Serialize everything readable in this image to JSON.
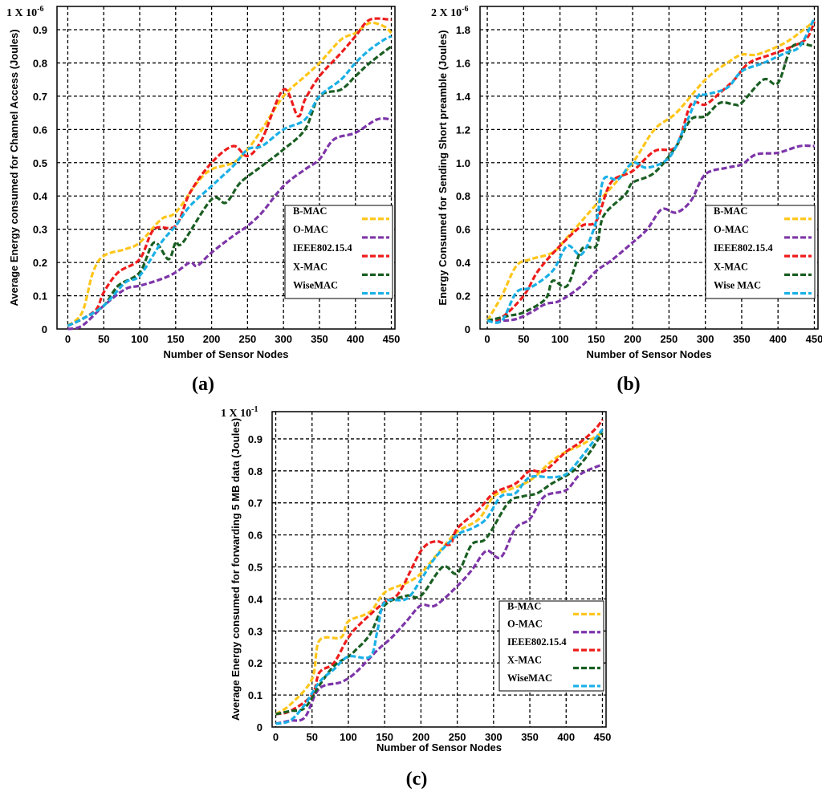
{
  "colors": {
    "B-MAC": "#ffc61a",
    "O-MAC": "#7d35a8",
    "IEEE802.15.4": "#ee1c1c",
    "X-MAC": "#1a5e22",
    "WiseMAC": "#1ab0e6"
  },
  "chart_data": [
    {
      "type": "line",
      "panel_label": "(a)",
      "scale_label": "1 X 10",
      "scale_exponent": "-6",
      "xlabel": "Number of Sensor Nodes",
      "ylabel": "Average Energy consumed for Channel Access (Joules)",
      "xlim": [
        -15,
        455
      ],
      "ylim": [
        0,
        0.97
      ],
      "xticks": [
        0,
        50,
        100,
        150,
        200,
        250,
        300,
        350,
        400,
        450
      ],
      "yticks": [
        0,
        0.1,
        0.2,
        0.3,
        0.4,
        0.5,
        0.6,
        0.7,
        0.8,
        0.9
      ],
      "ytick_labels": [
        "0",
        "0.1",
        "0.2",
        "0.3",
        "0.4",
        "0.5",
        "0.6",
        "0.7",
        "0.8",
        "0.9"
      ],
      "grid": true,
      "legend_position": "bottom-right",
      "series": [
        {
          "name": "B-MAC",
          "color_key": "B-MAC",
          "x": [
            0,
            20,
            35,
            50,
            80,
            100,
            130,
            150,
            180,
            200,
            230,
            250,
            270,
            300,
            330,
            350,
            380,
            400,
            420,
            440,
            450
          ],
          "values": [
            0.01,
            0.05,
            0.17,
            0.22,
            0.24,
            0.26,
            0.33,
            0.35,
            0.44,
            0.48,
            0.5,
            0.54,
            0.6,
            0.7,
            0.76,
            0.8,
            0.87,
            0.89,
            0.92,
            0.91,
            0.89
          ]
        },
        {
          "name": "O-MAC",
          "color_key": "O-MAC",
          "x": [
            0,
            20,
            50,
            80,
            100,
            130,
            150,
            170,
            180,
            200,
            230,
            250,
            270,
            300,
            330,
            350,
            370,
            400,
            430,
            450
          ],
          "values": [
            0,
            0.01,
            0.07,
            0.12,
            0.13,
            0.15,
            0.17,
            0.2,
            0.19,
            0.23,
            0.28,
            0.31,
            0.35,
            0.43,
            0.48,
            0.51,
            0.57,
            0.59,
            0.63,
            0.63
          ]
        },
        {
          "name": "IEEE802.15.4",
          "color_key": "IEEE802.15.4",
          "x": [
            0,
            20,
            40,
            50,
            70,
            100,
            120,
            150,
            170,
            200,
            230,
            250,
            270,
            300,
            320,
            330,
            350,
            380,
            400,
            420,
            450
          ],
          "values": [
            0.01,
            0.03,
            0.06,
            0.11,
            0.17,
            0.21,
            0.3,
            0.31,
            0.41,
            0.5,
            0.55,
            0.52,
            0.57,
            0.72,
            0.64,
            0.69,
            0.76,
            0.83,
            0.88,
            0.93,
            0.93
          ]
        },
        {
          "name": "X-MAC",
          "color_key": "X-MAC",
          "x": [
            0,
            20,
            50,
            70,
            100,
            120,
            140,
            150,
            160,
            200,
            220,
            240,
            270,
            300,
            330,
            350,
            380,
            400,
            420,
            450
          ],
          "values": [
            0.01,
            0.03,
            0.07,
            0.13,
            0.17,
            0.26,
            0.21,
            0.26,
            0.26,
            0.39,
            0.38,
            0.44,
            0.49,
            0.54,
            0.6,
            0.7,
            0.72,
            0.76,
            0.8,
            0.85
          ]
        },
        {
          "name": "WiseMAC",
          "color_key": "WiseMAC",
          "x": [
            0,
            20,
            50,
            80,
            100,
            130,
            150,
            170,
            200,
            230,
            250,
            270,
            300,
            330,
            350,
            380,
            400,
            420,
            440,
            450
          ],
          "values": [
            0.01,
            0.03,
            0.07,
            0.14,
            0.16,
            0.26,
            0.31,
            0.37,
            0.43,
            0.49,
            0.54,
            0.55,
            0.6,
            0.63,
            0.7,
            0.75,
            0.8,
            0.84,
            0.87,
            0.88
          ]
        }
      ]
    },
    {
      "type": "line",
      "panel_label": "(b)",
      "scale_label": "2 X 10",
      "scale_exponent": "-6",
      "xlabel": "Number of Sensor Nodes",
      "ylabel": "Energy Consumed for Sending Short preamble (Joules)",
      "xlim": [
        -10,
        455
      ],
      "ylim": [
        0,
        1.94
      ],
      "xticks": [
        0,
        50,
        100,
        150,
        200,
        250,
        300,
        350,
        400,
        450
      ],
      "yticks": [
        0,
        0.2,
        0.4,
        0.6,
        0.8,
        1.0,
        1.2,
        1.4,
        1.6,
        1.8
      ],
      "ytick_labels": [
        "0",
        "0.2",
        "0.4",
        "0.6",
        "0.8",
        "1.0",
        "1.2",
        "1.4",
        "1.6",
        "1.8"
      ],
      "grid": true,
      "legend_position": "bottom-right",
      "series": [
        {
          "name": "B-MAC",
          "color_key": "B-MAC",
          "x": [
            0,
            20,
            40,
            60,
            90,
            110,
            140,
            160,
            200,
            230,
            260,
            300,
            330,
            350,
            370,
            400,
            420,
            450
          ],
          "values": [
            0.05,
            0.2,
            0.38,
            0.42,
            0.46,
            0.55,
            0.7,
            0.8,
            1.0,
            1.2,
            1.3,
            1.5,
            1.6,
            1.65,
            1.65,
            1.7,
            1.75,
            1.85
          ]
        },
        {
          "name": "O-MAC",
          "color_key": "O-MAC",
          "x": [
            0,
            20,
            40,
            60,
            80,
            100,
            130,
            150,
            170,
            200,
            220,
            240,
            260,
            280,
            300,
            330,
            350,
            370,
            400,
            430,
            450
          ],
          "values": [
            0.05,
            0.05,
            0.06,
            0.1,
            0.15,
            0.17,
            0.26,
            0.35,
            0.41,
            0.52,
            0.6,
            0.72,
            0.7,
            0.77,
            0.93,
            0.97,
            0.99,
            1.05,
            1.06,
            1.1,
            1.1
          ]
        },
        {
          "name": "IEEE802.15.4",
          "color_key": "IEEE802.15.4",
          "x": [
            0,
            20,
            50,
            70,
            100,
            130,
            150,
            170,
            200,
            230,
            260,
            280,
            300,
            320,
            340,
            360,
            390,
            420,
            440,
            450
          ],
          "values": [
            0.05,
            0.07,
            0.2,
            0.35,
            0.5,
            0.62,
            0.65,
            0.88,
            0.95,
            1.07,
            1.1,
            1.35,
            1.35,
            1.42,
            1.5,
            1.6,
            1.65,
            1.7,
            1.75,
            1.85
          ]
        },
        {
          "name": "X-MAC",
          "color_key": "X-MAC",
          "x": [
            0,
            30,
            50,
            80,
            90,
            110,
            130,
            150,
            160,
            190,
            200,
            230,
            260,
            280,
            300,
            320,
            340,
            350,
            380,
            400,
            420,
            450
          ],
          "values": [
            0.05,
            0.08,
            0.1,
            0.18,
            0.29,
            0.26,
            0.48,
            0.5,
            0.68,
            0.81,
            0.88,
            0.94,
            1.1,
            1.26,
            1.28,
            1.36,
            1.35,
            1.36,
            1.5,
            1.48,
            1.7,
            1.7
          ]
        },
        {
          "name": "WiseMAC",
          "color_key": "WiseMAC",
          "x": [
            0,
            20,
            40,
            60,
            90,
            110,
            130,
            150,
            160,
            180,
            200,
            220,
            250,
            270,
            290,
            300,
            330,
            350,
            380,
            410,
            430,
            450
          ],
          "values": [
            0.05,
            0.05,
            0.22,
            0.25,
            0.35,
            0.5,
            0.45,
            0.65,
            0.9,
            0.9,
            1.0,
            0.97,
            1.03,
            1.2,
            1.4,
            1.41,
            1.45,
            1.55,
            1.6,
            1.66,
            1.7,
            1.87
          ]
        }
      ]
    },
    {
      "type": "line",
      "panel_label": "(c)",
      "scale_label": "1 X 10",
      "scale_exponent": "-1",
      "xlabel": "Number of Sensor Nodes",
      "ylabel": "Average Energy consumed for forwarding 5 MB data  (Joules)",
      "xlim": [
        -5,
        455
      ],
      "ylim": [
        0,
        0.985
      ],
      "xticks": [
        0,
        50,
        100,
        150,
        200,
        250,
        300,
        350,
        400,
        450
      ],
      "yticks": [
        0,
        0.1,
        0.2,
        0.3,
        0.4,
        0.5,
        0.6,
        0.7,
        0.8,
        0.9
      ],
      "ytick_labels": [
        "0",
        "0.1",
        "0.2",
        "0.3",
        "0.4",
        "0.5",
        "0.6",
        "0.7",
        "0.8",
        "0.9"
      ],
      "grid": true,
      "legend_position": "bottom-right",
      "series": [
        {
          "name": "B-MAC",
          "color_key": "B-MAC",
          "x": [
            0,
            20,
            50,
            60,
            90,
            100,
            130,
            150,
            180,
            200,
            230,
            250,
            280,
            300,
            320,
            350,
            380,
            400,
            420,
            450
          ],
          "values": [
            0.04,
            0.07,
            0.15,
            0.27,
            0.28,
            0.33,
            0.36,
            0.42,
            0.45,
            0.48,
            0.56,
            0.61,
            0.65,
            0.72,
            0.74,
            0.77,
            0.83,
            0.86,
            0.88,
            0.92
          ]
        },
        {
          "name": "O-MAC",
          "color_key": "O-MAC",
          "x": [
            0,
            20,
            40,
            60,
            90,
            110,
            140,
            160,
            180,
            200,
            220,
            250,
            270,
            290,
            310,
            330,
            350,
            370,
            400,
            420,
            450
          ],
          "values": [
            0.01,
            0.02,
            0.03,
            0.12,
            0.14,
            0.17,
            0.24,
            0.28,
            0.33,
            0.38,
            0.38,
            0.44,
            0.49,
            0.55,
            0.53,
            0.62,
            0.65,
            0.72,
            0.74,
            0.79,
            0.82
          ]
        },
        {
          "name": "IEEE802.15.4",
          "color_key": "IEEE802.15.4",
          "x": [
            0,
            20,
            50,
            60,
            80,
            100,
            120,
            150,
            170,
            200,
            220,
            240,
            250,
            280,
            300,
            330,
            350,
            370,
            400,
            420,
            440,
            450
          ],
          "values": [
            0.04,
            0.05,
            0.1,
            0.17,
            0.2,
            0.28,
            0.33,
            0.39,
            0.42,
            0.55,
            0.58,
            0.57,
            0.62,
            0.68,
            0.73,
            0.76,
            0.8,
            0.8,
            0.86,
            0.89,
            0.93,
            0.96
          ]
        },
        {
          "name": "X-MAC",
          "color_key": "X-MAC",
          "x": [
            0,
            20,
            40,
            60,
            80,
            100,
            110,
            130,
            150,
            180,
            200,
            230,
            250,
            270,
            290,
            320,
            340,
            360,
            380,
            410,
            430,
            450
          ],
          "values": [
            0.04,
            0.05,
            0.06,
            0.13,
            0.19,
            0.22,
            0.24,
            0.29,
            0.38,
            0.41,
            0.41,
            0.5,
            0.48,
            0.57,
            0.59,
            0.7,
            0.72,
            0.73,
            0.76,
            0.8,
            0.85,
            0.92
          ]
        },
        {
          "name": "WiseMAC",
          "color_key": "WiseMAC",
          "x": [
            0,
            20,
            40,
            60,
            80,
            100,
            130,
            140,
            150,
            180,
            200,
            220,
            250,
            270,
            290,
            310,
            330,
            350,
            380,
            400,
            420,
            450
          ],
          "values": [
            0.01,
            0.02,
            0.07,
            0.14,
            0.18,
            0.22,
            0.22,
            0.3,
            0.39,
            0.4,
            0.46,
            0.53,
            0.6,
            0.62,
            0.65,
            0.72,
            0.73,
            0.78,
            0.78,
            0.79,
            0.84,
            0.93
          ]
        }
      ]
    }
  ],
  "legends": [
    {
      "panel": "a",
      "entries": [
        "B-MAC",
        "O-MAC",
        "IEEE802.15.4",
        "X-MAC",
        "WiseMAC"
      ]
    },
    {
      "panel": "b",
      "entries": [
        "B-MAC",
        "O-MAC",
        "IEEE802.15.4",
        "X-MAC",
        "Wise MAC"
      ]
    },
    {
      "panel": "c",
      "entries": [
        "B-MAC",
        "O-MAC",
        "IEEE802.15.4",
        "X-MAC",
        "WiseMAC"
      ]
    }
  ]
}
